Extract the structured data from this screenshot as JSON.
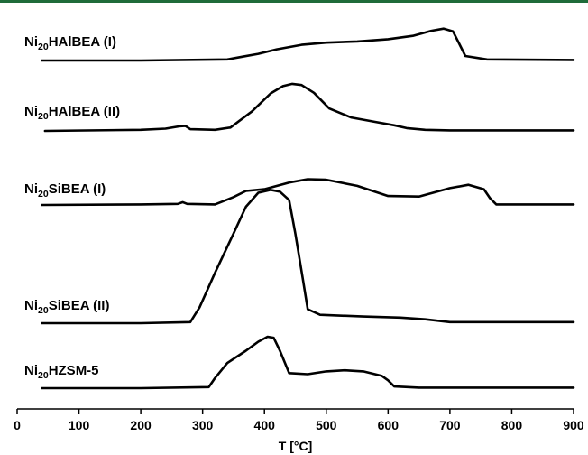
{
  "top_rule_color": "#1f6b3a",
  "chart_data": {
    "type": "line",
    "title": "",
    "xlabel": "T [°C]",
    "ylabel": "",
    "xlim": [
      0,
      900
    ],
    "xticks": [
      0,
      100,
      200,
      300,
      400,
      500,
      600,
      700,
      800,
      900
    ],
    "y_units": "arbitrary, stacked profiles",
    "grid": false,
    "series": [
      {
        "name": "Ni20HAlBEA (I)",
        "label_parts": [
          "Ni",
          "20",
          "HAlBEA (I)"
        ],
        "x": [
          40,
          200,
          340,
          365,
          390,
          420,
          460,
          500,
          550,
          600,
          640,
          670,
          690,
          705,
          715,
          725,
          760,
          900
        ],
        "y": [
          0,
          0,
          0.02,
          0.07,
          0.12,
          0.2,
          0.28,
          0.32,
          0.34,
          0.38,
          0.44,
          0.53,
          0.57,
          0.52,
          0.3,
          0.08,
          0.02,
          0.01
        ]
      },
      {
        "name": "Ni20HAlBEA (II)",
        "label_parts": [
          "Ni",
          "20",
          "HAlBEA (II)"
        ],
        "x": [
          45,
          200,
          240,
          262,
          272,
          280,
          320,
          345,
          380,
          410,
          430,
          445,
          460,
          480,
          505,
          540,
          580,
          610,
          630,
          660,
          700,
          900
        ],
        "y": [
          0,
          0.02,
          0.04,
          0.08,
          0.09,
          0.03,
          0.02,
          0.06,
          0.35,
          0.67,
          0.8,
          0.84,
          0.82,
          0.68,
          0.4,
          0.24,
          0.16,
          0.1,
          0.05,
          0.02,
          0.01,
          0.01
        ]
      },
      {
        "name": "Ni20SiBEA (I)",
        "label_parts": [
          "Ni",
          "20",
          "SiBEA (I)"
        ],
        "x": [
          40,
          200,
          260,
          268,
          275,
          320,
          350,
          370,
          400,
          440,
          470,
          500,
          550,
          600,
          650,
          700,
          730,
          755,
          765,
          775,
          900
        ],
        "y": [
          0,
          0.01,
          0.02,
          0.05,
          0.02,
          0.01,
          0.14,
          0.25,
          0.28,
          0.4,
          0.46,
          0.45,
          0.34,
          0.16,
          0.15,
          0.3,
          0.36,
          0.28,
          0.12,
          0.01,
          0.01
        ]
      },
      {
        "name": "Ni20SiBEA (II)",
        "label_parts": [
          "Ni",
          "20",
          "SiBEA (II)"
        ],
        "x": [
          40,
          200,
          280,
          295,
          320,
          350,
          370,
          390,
          410,
          425,
          440,
          450,
          462,
          470,
          490,
          560,
          620,
          660,
          700,
          900
        ],
        "y": [
          0,
          0,
          0.02,
          0.28,
          0.9,
          1.6,
          2.08,
          2.33,
          2.38,
          2.35,
          2.2,
          1.6,
          0.8,
          0.25,
          0.15,
          0.12,
          0.1,
          0.07,
          0.02,
          0.02
        ]
      },
      {
        "name": "Ni20HZSM-5",
        "label_parts": [
          "Ni",
          "20",
          "HZSM-5"
        ],
        "x": [
          40,
          200,
          310,
          320,
          340,
          370,
          390,
          405,
          415,
          425,
          440,
          470,
          500,
          530,
          560,
          590,
          600,
          610,
          650,
          900
        ],
        "y": [
          0,
          0,
          0.02,
          0.18,
          0.45,
          0.67,
          0.83,
          0.92,
          0.9,
          0.67,
          0.27,
          0.25,
          0.3,
          0.32,
          0.3,
          0.22,
          0.14,
          0.03,
          0.01,
          0.01
        ]
      }
    ]
  }
}
